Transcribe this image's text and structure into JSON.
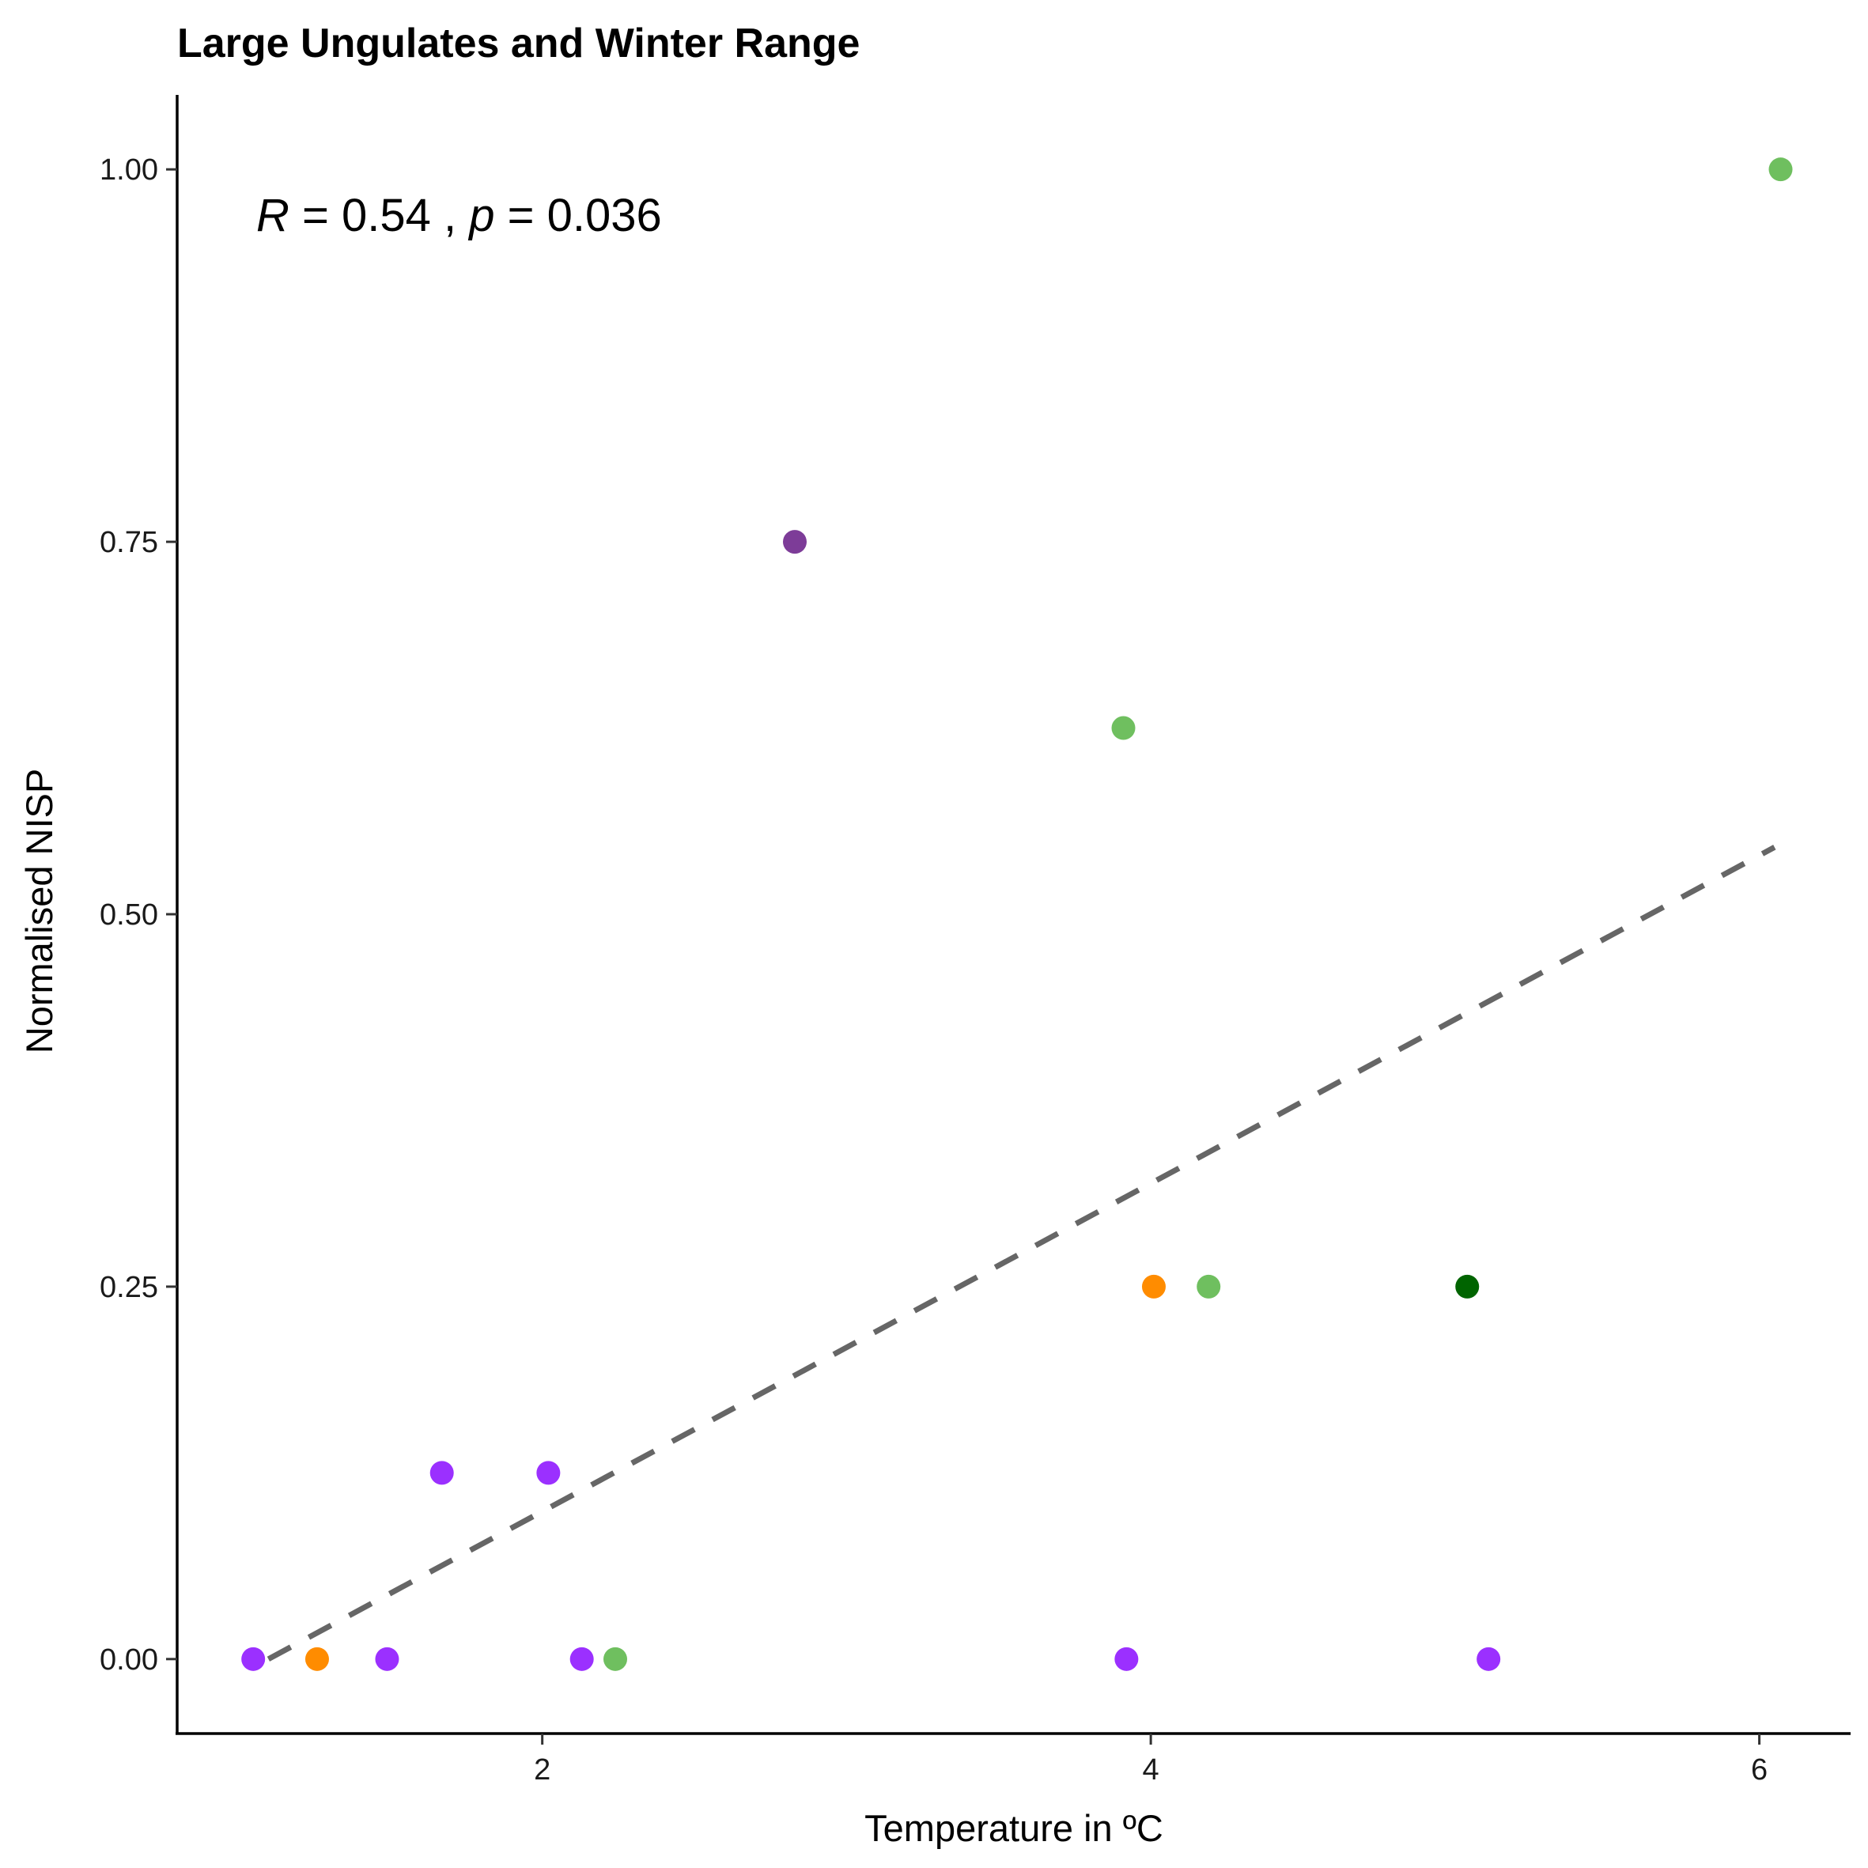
{
  "chart_data": {
    "type": "scatter",
    "title": "Large Ungulates and Winter Range",
    "xlabel": "Temperature in ºC",
    "ylabel": "Normalised NISP",
    "xlim": [
      0.8,
      6.3
    ],
    "ylim": [
      -0.05,
      1.05
    ],
    "x_ticks": [
      2,
      4,
      6
    ],
    "x_tick_labels": [
      "2",
      "4",
      "6"
    ],
    "y_ticks": [
      0,
      0.25,
      0.5,
      0.75,
      1.0
    ],
    "y_tick_labels": [
      "0.00",
      "0.25",
      "0.50",
      "0.75",
      "1.00"
    ],
    "grid": false,
    "legend": "none",
    "annotation": {
      "r_symbol": "R",
      "r_value": "= 0.54",
      "separator": " , ",
      "p_symbol": "p",
      "p_value": "= 0.036"
    },
    "points": [
      {
        "x": 1.05,
        "y": 0.0,
        "color": "#9b30ff"
      },
      {
        "x": 1.26,
        "y": 0.0,
        "color": "#ff8c00"
      },
      {
        "x": 1.49,
        "y": 0.0,
        "color": "#9b30ff"
      },
      {
        "x": 1.67,
        "y": 0.125,
        "color": "#9b30ff"
      },
      {
        "x": 2.02,
        "y": 0.125,
        "color": "#9b30ff"
      },
      {
        "x": 2.13,
        "y": 0.0,
        "color": "#9b30ff"
      },
      {
        "x": 2.24,
        "y": 0.0,
        "color": "#6fbf5f"
      },
      {
        "x": 2.83,
        "y": 0.75,
        "color": "#7d3c98"
      },
      {
        "x": 3.91,
        "y": 0.625,
        "color": "#6fbf5f"
      },
      {
        "x": 3.92,
        "y": 0.0,
        "color": "#9b30ff"
      },
      {
        "x": 4.01,
        "y": 0.25,
        "color": "#ff8c00"
      },
      {
        "x": 4.19,
        "y": 0.25,
        "color": "#6fbf5f"
      },
      {
        "x": 5.04,
        "y": 0.25,
        "color": "#006400"
      },
      {
        "x": 5.11,
        "y": 0.0,
        "color": "#9b30ff"
      },
      {
        "x": 6.07,
        "y": 1.0,
        "color": "#6fbf5f"
      }
    ],
    "trend_line": {
      "x": [
        1.1,
        6.05
      ],
      "y": [
        0.0,
        0.545
      ],
      "style": "dashed",
      "color": "#666666"
    }
  }
}
